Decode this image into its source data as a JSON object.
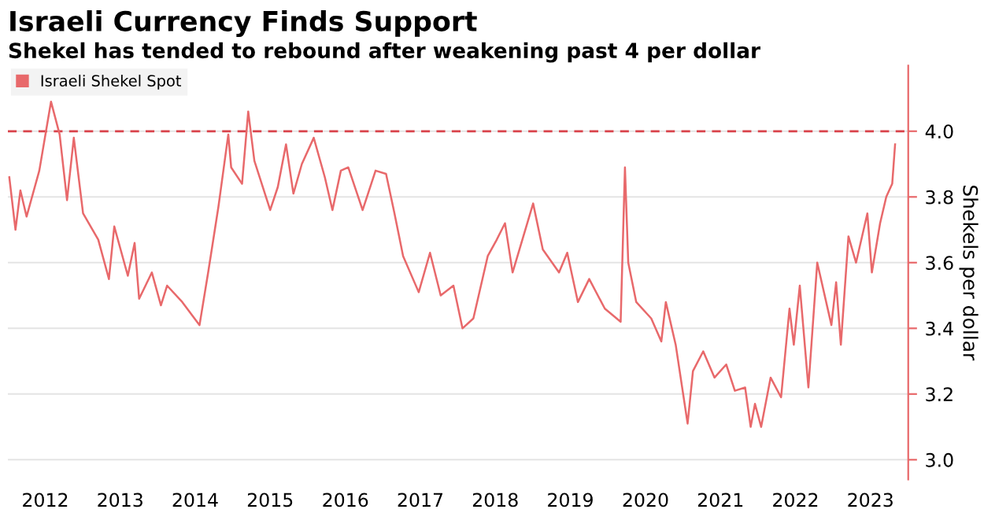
{
  "chart_data": {
    "type": "line",
    "title": "Israeli Currency Finds Support",
    "subtitle": "Shekel has tended to rebound after weakening past 4 per dollar",
    "ylabel": "Shekels per dollar",
    "x": [
      "2012-01-08",
      "2012-02-07",
      "2012-03-02",
      "2012-04-01",
      "2012-06-02",
      "2012-07-29",
      "2012-09-09",
      "2012-10-15",
      "2012-11-17",
      "2013-01-01",
      "2013-03-16",
      "2013-05-07",
      "2013-06-02",
      "2013-08-07",
      "2013-09-09",
      "2013-10-01",
      "2013-12-02",
      "2014-01-15",
      "2014-02-14",
      "2014-04-29",
      "2014-07-22",
      "2014-09-02",
      "2014-10-22",
      "2014-12-09",
      "2014-12-23",
      "2015-02-14",
      "2015-03-16",
      "2015-04-15",
      "2015-07-01",
      "2015-08-07",
      "2015-09-16",
      "2015-10-22",
      "2015-12-02",
      "2016-01-29",
      "2016-03-23",
      "2016-04-29",
      "2016-06-09",
      "2016-07-15",
      "2016-09-23",
      "2016-11-25",
      "2017-01-15",
      "2017-02-25",
      "2017-04-08",
      "2017-06-23",
      "2017-08-17",
      "2017-10-08",
      "2017-12-09",
      "2018-01-22",
      "2018-03-16",
      "2018-05-25",
      "2018-07-08",
      "2018-08-17",
      "2018-09-23",
      "2019-01-01",
      "2019-02-17",
      "2019-05-07",
      "2019-06-16",
      "2019-08-07",
      "2019-10-01",
      "2019-12-16",
      "2020-03-02",
      "2020-03-23",
      "2020-04-08",
      "2020-05-17",
      "2020-07-29",
      "2020-09-16",
      "2020-10-08",
      "2020-11-25",
      "2021-01-22",
      "2021-02-17",
      "2021-04-08",
      "2021-06-02",
      "2021-07-29",
      "2021-09-09",
      "2021-10-29",
      "2021-11-25",
      "2021-12-16",
      "2022-01-15",
      "2022-03-02",
      "2022-04-22",
      "2022-06-02",
      "2022-06-23",
      "2022-07-22",
      "2022-09-02",
      "2022-10-15",
      "2022-12-23",
      "2023-01-15",
      "2023-02-07",
      "2023-03-16",
      "2023-04-22",
      "2023-06-16",
      "2023-07-08",
      "2023-08-17",
      "2023-09-16",
      "2023-10-15",
      "2023-10-29"
    ],
    "series": [
      {
        "name": "Israeli Shekel Spot",
        "color": "#e8696b",
        "values": [
          3.86,
          3.7,
          3.82,
          3.74,
          3.88,
          4.09,
          3.99,
          3.79,
          3.98,
          3.75,
          3.67,
          3.55,
          3.71,
          3.56,
          3.66,
          3.49,
          3.57,
          3.47,
          3.53,
          3.48,
          3.41,
          3.57,
          3.77,
          3.99,
          3.89,
          3.84,
          4.06,
          3.91,
          3.76,
          3.83,
          3.96,
          3.81,
          3.9,
          3.98,
          3.86,
          3.76,
          3.88,
          3.89,
          3.76,
          3.88,
          3.87,
          3.75,
          3.62,
          3.51,
          3.63,
          3.5,
          3.53,
          3.4,
          3.43,
          3.62,
          3.67,
          3.72,
          3.57,
          3.78,
          3.64,
          3.57,
          3.63,
          3.48,
          3.55,
          3.46,
          3.42,
          3.89,
          3.6,
          3.48,
          3.43,
          3.36,
          3.48,
          3.35,
          3.11,
          3.27,
          3.33,
          3.25,
          3.29,
          3.21,
          3.22,
          3.1,
          3.17,
          3.1,
          3.25,
          3.19,
          3.46,
          3.35,
          3.53,
          3.22,
          3.6,
          3.41,
          3.54,
          3.35,
          3.68,
          3.6,
          3.75,
          3.57,
          3.72,
          3.8,
          3.84,
          3.96
        ]
      }
    ],
    "xlim": [
      "2012-01-01",
      "2024-01-01"
    ],
    "xticks": [
      {
        "value": "2012-07-01",
        "label": "2012"
      },
      {
        "value": "2013-07-01",
        "label": "2013"
      },
      {
        "value": "2014-07-01",
        "label": "2014"
      },
      {
        "value": "2015-07-01",
        "label": "2015"
      },
      {
        "value": "2016-07-01",
        "label": "2016"
      },
      {
        "value": "2017-07-01",
        "label": "2017"
      },
      {
        "value": "2018-07-01",
        "label": "2018"
      },
      {
        "value": "2019-07-01",
        "label": "2019"
      },
      {
        "value": "2020-07-01",
        "label": "2020"
      },
      {
        "value": "2021-07-01",
        "label": "2021"
      },
      {
        "value": "2022-07-01",
        "label": "2022"
      },
      {
        "value": "2023-07-01",
        "label": "2023"
      }
    ],
    "ylim": [
      2.94,
      4.2
    ],
    "yticks": [
      {
        "value": 3.0,
        "label": "3.0"
      },
      {
        "value": 3.2,
        "label": "3.2"
      },
      {
        "value": 3.4,
        "label": "3.4"
      },
      {
        "value": 3.6,
        "label": "3.6"
      },
      {
        "value": 3.8,
        "label": "3.8"
      },
      {
        "value": 4.0,
        "label": "4.0"
      }
    ],
    "ref_lines": [
      {
        "axis": "y",
        "value": 4.0,
        "color": "#d9434b",
        "line_style": "dashed"
      }
    ],
    "grid": "y",
    "legend": "top left"
  }
}
